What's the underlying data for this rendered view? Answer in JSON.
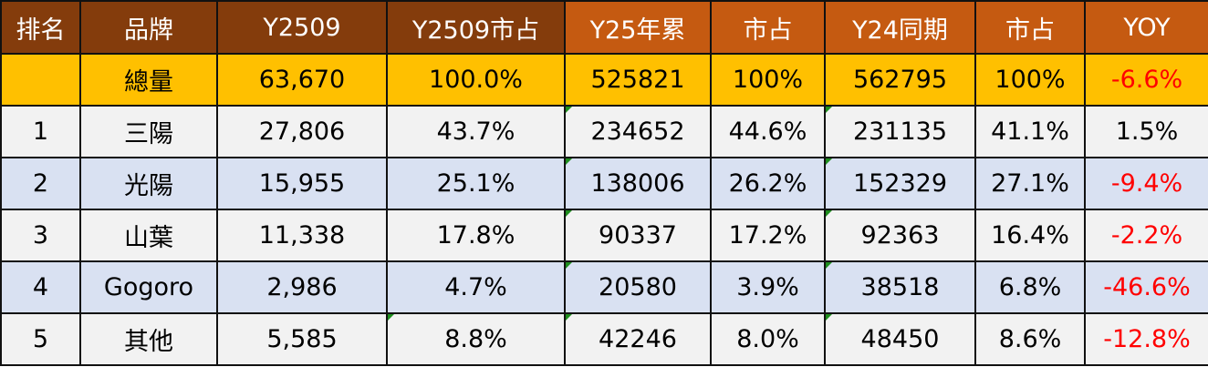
{
  "headers": [
    "排名",
    "品牌",
    "Y2509",
    "Y2509市占",
    "Y25年累",
    "市占",
    "Y24同期",
    "市占",
    "YOY"
  ],
  "colors": {
    "header_dark": "#843C0C",
    "header_light": "#C55A11",
    "total_row": "#FFC000",
    "row_odd": "#F2F2F2",
    "row_even": "#D9E1F2",
    "negative": "#FF0000"
  },
  "total": {
    "rank": "",
    "brand": "總量",
    "y2509": "63,670",
    "y2509_share": "100.0%",
    "y25_ytd": "525821",
    "y25_share": "100%",
    "y24_ytd": "562795",
    "y24_share": "100%",
    "yoy": "-6.6%"
  },
  "rows": [
    {
      "rank": "1",
      "brand": "三陽",
      "y2509": "27,806",
      "y2509_share": "43.7%",
      "y25_ytd": "234652",
      "y25_share": "44.6%",
      "y24_ytd": "231135",
      "y24_share": "41.1%",
      "yoy": "1.5%"
    },
    {
      "rank": "2",
      "brand": "光陽",
      "y2509": "15,955",
      "y2509_share": "25.1%",
      "y25_ytd": "138006",
      "y25_share": "26.2%",
      "y24_ytd": "152329",
      "y24_share": "27.1%",
      "yoy": "-9.4%"
    },
    {
      "rank": "3",
      "brand": "山葉",
      "y2509": "11,338",
      "y2509_share": "17.8%",
      "y25_ytd": "90337",
      "y25_share": "17.2%",
      "y24_ytd": "92363",
      "y24_share": "16.4%",
      "yoy": "-2.2%"
    },
    {
      "rank": "4",
      "brand": "Gogoro",
      "y2509": "2,986",
      "y2509_share": "4.7%",
      "y25_ytd": "20580",
      "y25_share": "3.9%",
      "y24_ytd": "38518",
      "y24_share": "6.8%",
      "yoy": "-46.6%"
    },
    {
      "rank": "5",
      "brand": "其他",
      "y2509": "5,585",
      "y2509_share": "8.8%",
      "y25_ytd": "42246",
      "y25_share": "8.0%",
      "y24_ytd": "48450",
      "y24_share": "8.6%",
      "yoy": "-12.8%"
    }
  ]
}
